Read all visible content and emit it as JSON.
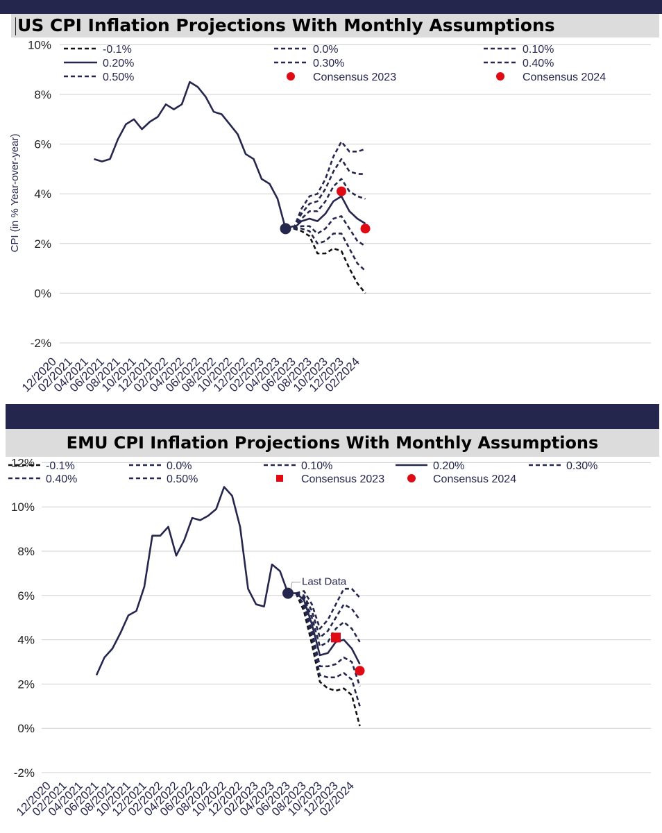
{
  "colors": {
    "navy": "#24264e",
    "red": "#e00a14",
    "grid": "#cfcfcf",
    "title_bg": "#dcdcdc"
  },
  "chart_data": [
    {
      "type": "line",
      "title": "US  CPI Inflation Projections With Monthly Assumptions",
      "ylabel": "CPI (in % Year-over-year)",
      "ylim": [
        -2,
        10
      ],
      "yticks": [
        -2,
        0,
        2,
        4,
        6,
        8,
        10
      ],
      "ytick_labels": [
        "-2%",
        "0%",
        "2%",
        "4%",
        "6%",
        "8%",
        "10%"
      ],
      "xlim": [
        "2020-12",
        "2024-03"
      ],
      "xtick_labels": [
        "12/2020",
        "02/2021",
        "04/2021",
        "06/2021",
        "08/2021",
        "10/2021",
        "12/2021",
        "02/2022",
        "04/2022",
        "06/2022",
        "08/2022",
        "10/2022",
        "12/2022",
        "02/2023",
        "04/2023",
        "06/2023",
        "08/2023",
        "10/2023",
        "12/2023",
        "02/2024"
      ],
      "grid": true,
      "legend_position": "top",
      "history": {
        "x": [
          "2021-05",
          "2021-06",
          "2021-07",
          "2021-08",
          "2021-09",
          "2021-10",
          "2021-11",
          "2021-12",
          "2022-01",
          "2022-02",
          "2022-03",
          "2022-04",
          "2022-05",
          "2022-06",
          "2022-07",
          "2022-08",
          "2022-09",
          "2022-10",
          "2022-11",
          "2022-12",
          "2023-01",
          "2023-02",
          "2023-03",
          "2023-04",
          "2023-05",
          "2023-06"
        ],
        "values": [
          5.4,
          5.3,
          5.4,
          6.2,
          6.8,
          7.0,
          6.6,
          6.9,
          7.1,
          7.6,
          7.4,
          7.6,
          8.5,
          8.3,
          7.9,
          7.3,
          7.2,
          6.8,
          6.4,
          5.6,
          5.4,
          4.6,
          4.4,
          3.8,
          2.6,
          2.7
        ]
      },
      "last_data": {
        "x": "2023-05",
        "value": 2.6
      },
      "projection_x": [
        "2023-06",
        "2023-07",
        "2023-08",
        "2023-09",
        "2023-10",
        "2023-11",
        "2023-12",
        "2024-01",
        "2024-02",
        "2024-03"
      ],
      "series": [
        {
          "name": "-0.1%",
          "style": "dashed",
          "values": [
            2.6,
            2.5,
            2.3,
            1.6,
            1.6,
            1.8,
            1.7,
            1.0,
            0.4,
            0.0
          ]
        },
        {
          "name": "0.0%",
          "style": "dashed",
          "values": [
            2.6,
            2.6,
            2.5,
            2.0,
            2.1,
            2.4,
            2.4,
            1.8,
            1.2,
            0.9
          ]
        },
        {
          "name": "0.10%",
          "style": "dashed",
          "values": [
            2.6,
            2.7,
            2.7,
            2.4,
            2.6,
            3.0,
            3.1,
            2.6,
            2.1,
            1.9
          ]
        },
        {
          "name": "0.20%",
          "style": "solid",
          "values": [
            2.6,
            2.9,
            3.0,
            2.9,
            3.2,
            3.7,
            3.9,
            3.3,
            3.0,
            2.8
          ]
        },
        {
          "name": "0.30%",
          "style": "dashed",
          "values": [
            2.6,
            3.0,
            3.3,
            3.3,
            3.7,
            4.3,
            4.6,
            4.1,
            3.9,
            3.8
          ]
        },
        {
          "name": "0.40%",
          "style": "dashed",
          "values": [
            2.6,
            3.2,
            3.6,
            3.7,
            4.2,
            4.9,
            5.4,
            4.9,
            4.8,
            4.8
          ]
        },
        {
          "name": "0.50%",
          "style": "dashed",
          "values": [
            2.6,
            3.4,
            3.9,
            4.0,
            4.6,
            5.5,
            6.1,
            5.7,
            5.7,
            5.8
          ]
        }
      ],
      "consensus": [
        {
          "name": "Consensus 2023",
          "marker": "circle",
          "x": "2023-12",
          "value": 4.1
        },
        {
          "name": "Consensus 2024",
          "marker": "circle",
          "x": "2024-03",
          "value": 2.6
        }
      ]
    },
    {
      "type": "line",
      "title": "EMU CPI Inflation Projections With Monthly Assumptions",
      "ylim": [
        -2,
        12
      ],
      "yticks": [
        -2,
        0,
        2,
        4,
        6,
        8,
        10,
        12
      ],
      "ytick_labels": [
        "-2%",
        "0%",
        "2%",
        "4%",
        "6%",
        "8%",
        "10%",
        "12%"
      ],
      "xlim": [
        "2020-12",
        "2024-03"
      ],
      "xtick_labels": [
        "12/2020",
        "02/2021",
        "04/2021",
        "06/2021",
        "08/2021",
        "10/2021",
        "12/2021",
        "02/2022",
        "04/2022",
        "06/2022",
        "08/2022",
        "10/2022",
        "12/2022",
        "02/2023",
        "04/2023",
        "06/2023",
        "08/2023",
        "10/2023",
        "12/2023",
        "02/2024"
      ],
      "grid": true,
      "legend_position": "top",
      "annotation": "Last Data",
      "history": {
        "x": [
          "2021-06",
          "2021-07",
          "2021-08",
          "2021-09",
          "2021-10",
          "2021-11",
          "2021-12",
          "2022-01",
          "2022-02",
          "2022-03",
          "2022-04",
          "2022-05",
          "2022-06",
          "2022-07",
          "2022-08",
          "2022-09",
          "2022-10",
          "2022-11",
          "2022-12",
          "2023-01",
          "2023-02",
          "2023-03",
          "2023-04",
          "2023-05",
          "2023-06",
          "2023-07"
        ],
        "values": [
          2.4,
          3.2,
          3.6,
          4.3,
          5.1,
          5.3,
          6.4,
          8.7,
          8.7,
          9.1,
          7.8,
          8.5,
          9.5,
          9.4,
          9.6,
          9.9,
          10.9,
          10.5,
          9.1,
          6.3,
          5.6,
          5.5,
          7.4,
          7.1,
          6.1,
          6.1
        ]
      },
      "last_data": {
        "x": "2023-06",
        "value": 6.1
      },
      "projection_x": [
        "2023-07",
        "2023-08",
        "2023-09",
        "2023-10",
        "2023-11",
        "2023-12",
        "2024-01",
        "2024-02",
        "2024-03"
      ],
      "series": [
        {
          "name": "-0.1%",
          "style": "dashed",
          "values": [
            6.1,
            5.3,
            3.8,
            2.1,
            1.8,
            1.7,
            1.8,
            1.5,
            0.1
          ]
        },
        {
          "name": "0.0%",
          "style": "dashed",
          "values": [
            6.1,
            5.5,
            4.1,
            2.4,
            2.3,
            2.3,
            2.5,
            2.2,
            1.0
          ]
        },
        {
          "name": "0.10%",
          "style": "dashed",
          "values": [
            6.1,
            5.6,
            4.4,
            2.8,
            2.8,
            2.9,
            3.2,
            3.0,
            1.9
          ]
        },
        {
          "name": "0.20%",
          "style": "solid",
          "values": [
            6.1,
            5.8,
            4.7,
            3.3,
            3.4,
            3.9,
            4.0,
            3.6,
            2.9
          ]
        },
        {
          "name": "0.30%",
          "style": "dashed",
          "values": [
            6.1,
            5.9,
            5.0,
            3.7,
            3.9,
            4.5,
            4.8,
            4.5,
            3.9
          ]
        },
        {
          "name": "0.40%",
          "style": "dashed",
          "values": [
            6.1,
            6.0,
            5.3,
            4.1,
            4.4,
            5.0,
            5.6,
            5.4,
            4.9
          ]
        },
        {
          "name": "0.50%",
          "style": "dashed",
          "values": [
            6.1,
            6.2,
            5.6,
            4.5,
            4.9,
            5.6,
            6.3,
            6.3,
            5.9
          ]
        }
      ],
      "consensus": [
        {
          "name": "Consensus 2023",
          "marker": "square",
          "x": "2023-12",
          "value": 4.1
        },
        {
          "name": "Consensus 2024",
          "marker": "circle",
          "x": "2024-03",
          "value": 2.6
        }
      ]
    }
  ]
}
